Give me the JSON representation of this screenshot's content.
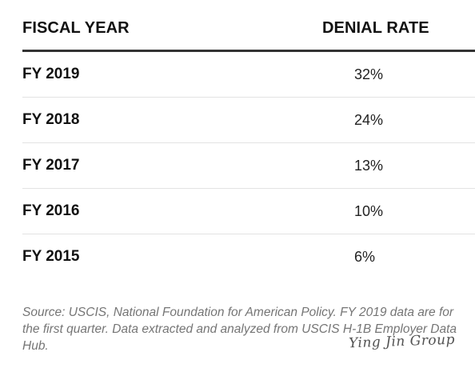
{
  "table": {
    "headers": {
      "fiscal_year": "FISCAL YEAR",
      "denial_rate": "DENIAL RATE"
    },
    "rows": [
      {
        "year": "FY 2019",
        "rate": "32%"
      },
      {
        "year": "FY 2018",
        "rate": "24%"
      },
      {
        "year": "FY 2017",
        "rate": "13%"
      },
      {
        "year": "FY 2016",
        "rate": "10%"
      },
      {
        "year": "FY 2015",
        "rate": "6%"
      }
    ]
  },
  "source_note": "Source: USCIS, National Foundation for American Policy. FY 2019 data are for the first quarter. Data extracted and analyzed from USCIS H-1B Employer Data Hub.",
  "watermark": "Ying Jin Group",
  "colors": {
    "text": "#111111",
    "header_rule": "#333333",
    "row_divider": "#e3e3e3",
    "source_text": "#757575"
  }
}
